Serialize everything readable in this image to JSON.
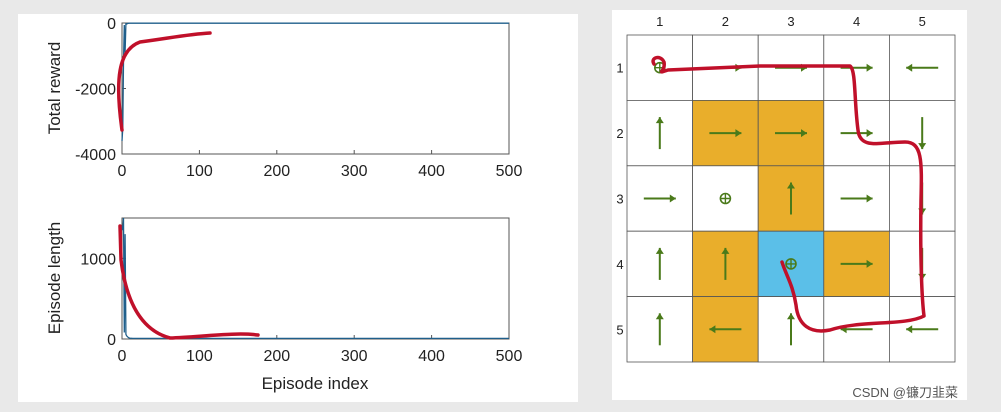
{
  "colors": {
    "background": "#e9e9e9",
    "panel": "#ffffff",
    "trace": "#1f5f8b",
    "annotation": "#c0102a",
    "forbidden": "#e9ae2b",
    "target": "#5bbfe8",
    "arrow": "#4a7a1a"
  },
  "chart_data": [
    {
      "type": "line",
      "ylabel": "Total reward",
      "xlim": [
        0,
        500
      ],
      "ylim": [
        -4000,
        0
      ],
      "x_ticks": [
        "0",
        "100",
        "200",
        "300",
        "400",
        "500"
      ],
      "y_ticks": [
        "0",
        "-2000",
        "-4000"
      ],
      "series": [
        {
          "x": [
            0,
            1,
            2,
            3,
            4,
            5,
            6,
            8,
            10,
            14,
            20,
            30,
            60,
            100,
            200,
            300,
            400,
            500
          ],
          "y": [
            -3600,
            -3200,
            -1200,
            -60,
            -900,
            -20,
            -30,
            -10,
            -5,
            -5,
            -5,
            -5,
            -5,
            -5,
            -5,
            -5,
            -5,
            -5
          ]
        }
      ]
    },
    {
      "type": "line",
      "xlabel": "Episode index",
      "ylabel": "Episode length",
      "xlim": [
        0,
        500
      ],
      "ylim": [
        0,
        1500
      ],
      "x_ticks": [
        "0",
        "100",
        "200",
        "300",
        "400",
        "500"
      ],
      "y_ticks": [
        "1000",
        "0"
      ],
      "series": [
        {
          "x": [
            0,
            1,
            2,
            3,
            4,
            5,
            6,
            8,
            10,
            14,
            20,
            30,
            60,
            100,
            200,
            300,
            400,
            500
          ],
          "y": [
            1400,
            1350,
            1500,
            80,
            1300,
            60,
            40,
            20,
            10,
            8,
            8,
            8,
            8,
            8,
            8,
            8,
            8,
            8
          ]
        }
      ]
    },
    {
      "type": "table",
      "column_headers": [
        "1",
        "2",
        "3",
        "4",
        "5"
      ],
      "row_headers": [
        "1",
        "2",
        "3",
        "4",
        "5"
      ],
      "cell_types": [
        [
          "normal",
          "normal",
          "normal",
          "normal",
          "normal"
        ],
        [
          "normal",
          "forbidden",
          "forbidden",
          "normal",
          "normal"
        ],
        [
          "normal",
          "normal",
          "forbidden",
          "normal",
          "normal"
        ],
        [
          "normal",
          "forbidden",
          "target",
          "forbidden",
          "normal"
        ],
        [
          "normal",
          "forbidden",
          "normal",
          "normal",
          "normal"
        ]
      ],
      "policy": [
        [
          "stay",
          "right",
          "right",
          "right",
          "left"
        ],
        [
          "up",
          "right",
          "right",
          "right",
          "down"
        ],
        [
          "right",
          "stay",
          "up",
          "right",
          "down"
        ],
        [
          "up",
          "up",
          "stay",
          "right",
          "down"
        ],
        [
          "up",
          "left",
          "up",
          "left",
          "left"
        ]
      ]
    }
  ],
  "watermark": "CSDN @镰刀韭菜"
}
